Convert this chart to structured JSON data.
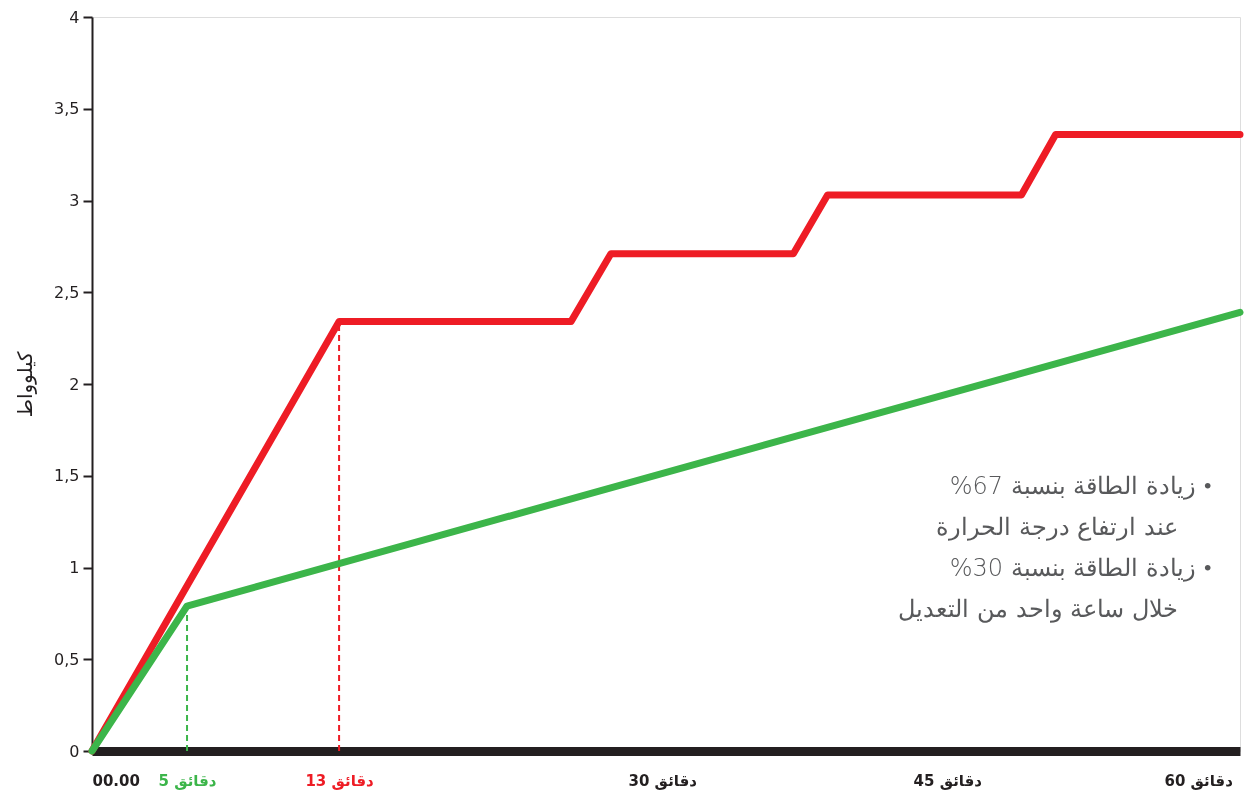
{
  "chart_data": {
    "type": "line",
    "ylabel": "كيلوواط",
    "xlim": [
      0,
      60.4
    ],
    "ylim": [
      0,
      4
    ],
    "xticks": [
      {
        "value": 0,
        "label": "00.00"
      },
      {
        "value": 5,
        "label": "5 دقائق"
      },
      {
        "value": 13,
        "label": "13 دقائق"
      },
      {
        "value": 30,
        "label": "30 دقائق"
      },
      {
        "value": 45,
        "label": "45 دقائق"
      },
      {
        "value": 60,
        "label": "60 دقائق"
      }
    ],
    "yticks": [
      0,
      {
        "value": 0.5,
        "label": "0,5"
      },
      1,
      {
        "value": 1.5,
        "label": "1,5"
      },
      2,
      {
        "value": 2.5,
        "label": "2,5"
      },
      3,
      {
        "value": 3.5,
        "label": "3,5"
      },
      4
    ],
    "grid": false,
    "marker": "none",
    "series": [
      {
        "color": "#3cb54a",
        "line_style": "dashed",
        "x": [
          5,
          5
        ],
        "values": [
          0,
          0.79
        ]
      },
      {
        "color": "#ee1c25",
        "line_style": "dashed",
        "x": [
          13,
          13
        ],
        "values": [
          0,
          2.34
        ]
      },
      {
        "color": "#ee1c25",
        "line_style": "solid",
        "x": [
          0,
          13,
          25.2,
          27.3,
          36.9,
          38.7,
          48.9,
          50.7,
          60.4
        ],
        "values": [
          0,
          2.34,
          2.34,
          2.71,
          2.71,
          3.03,
          3.03,
          3.36,
          3.36
        ]
      },
      {
        "color": "#3cb54a",
        "line_style": "solid",
        "x": [
          0,
          5,
          60.4
        ],
        "values": [
          0,
          0.79,
          2.39
        ]
      }
    ],
    "annotations": [
      "•   زيادة الطاقة بنسبة 67%\nعند ارتفاع درجة الحرارة",
      "•   زيادة الطاقة بنسبة 30%\nخلال ساعة واحد من التعديل"
    ]
  }
}
